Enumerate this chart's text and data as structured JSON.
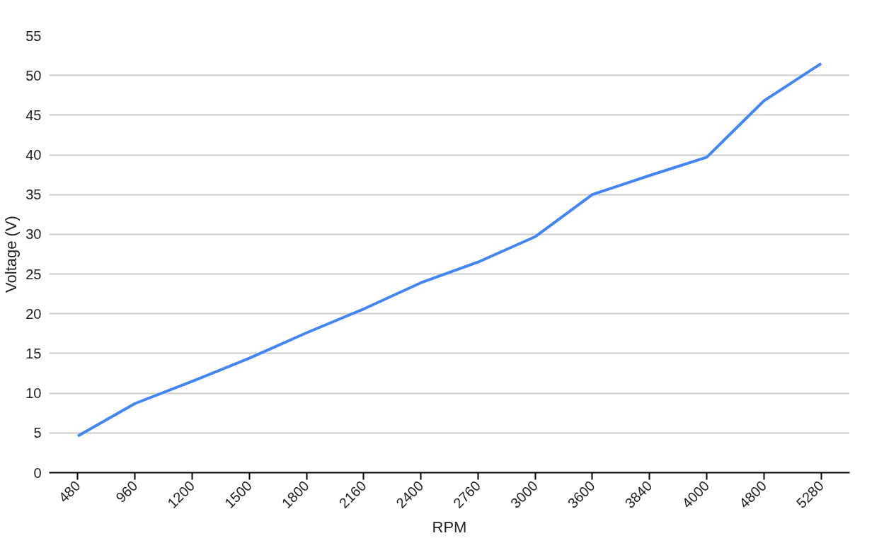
{
  "chart_data": {
    "type": "line",
    "xlabel": "RPM",
    "ylabel": "Voltage (V)",
    "categories": [
      "480",
      "960",
      "1200",
      "1500",
      "1800",
      "2160",
      "2400",
      "2760",
      "3000",
      "3600",
      "3840",
      "4000",
      "4800",
      "5280"
    ],
    "series": [
      {
        "color": "#4285f4",
        "values": [
          4.6,
          8.7,
          11.5,
          14.4,
          17.6,
          20.6,
          23.9,
          26.5,
          29.7,
          35.0,
          37.4,
          39.7,
          46.8,
          51.5
        ]
      }
    ],
    "ylim": [
      0,
      55
    ],
    "yticks": [
      0,
      5,
      10,
      15,
      20,
      25,
      30,
      35,
      40,
      45,
      50,
      55
    ],
    "grid": "y",
    "marker": "none",
    "line_style": "solid"
  }
}
